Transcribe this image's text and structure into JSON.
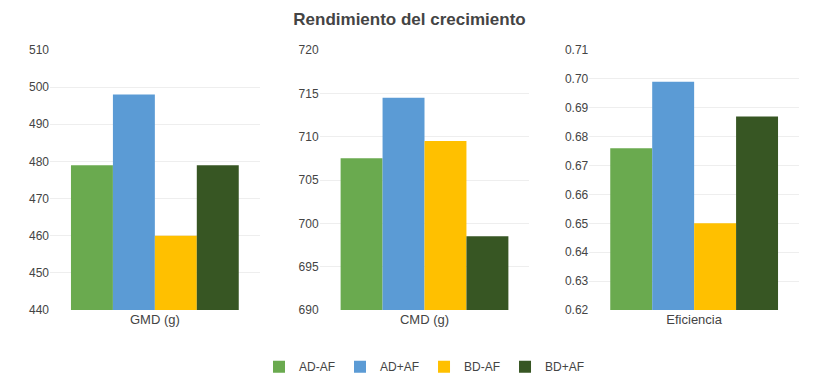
{
  "chart_data": [
    {
      "type": "bar",
      "title": "Rendimiento del crecimiento",
      "categories": [
        "GMD (g)"
      ],
      "series": [
        {
          "name": "AD-AF",
          "color": "#6aaa4f",
          "values": [
            479
          ]
        },
        {
          "name": "AD+AF",
          "color": "#5b9bd5",
          "values": [
            498
          ]
        },
        {
          "name": "BD-AF",
          "color": "#ffc000",
          "values": [
            460
          ]
        },
        {
          "name": "BD+AF",
          "color": "#375623",
          "values": [
            479
          ]
        }
      ],
      "ylim": [
        440,
        510
      ],
      "yticks": [
        440,
        450,
        460,
        470,
        480,
        490,
        500,
        510
      ],
      "grid": true,
      "legend": "bottom"
    },
    {
      "type": "bar",
      "categories": [
        "CMD (g)"
      ],
      "series": [
        {
          "name": "AD-AF",
          "color": "#6aaa4f",
          "values": [
            707.5
          ]
        },
        {
          "name": "AD+AF",
          "color": "#5b9bd5",
          "values": [
            714.5
          ]
        },
        {
          "name": "BD-AF",
          "color": "#ffc000",
          "values": [
            709.5
          ]
        },
        {
          "name": "BD+AF",
          "color": "#375623",
          "values": [
            698.5
          ]
        }
      ],
      "ylim": [
        690,
        720
      ],
      "yticks": [
        690,
        695,
        700,
        705,
        710,
        715,
        720
      ],
      "grid": true
    },
    {
      "type": "bar",
      "categories": [
        "Eficiencia"
      ],
      "series": [
        {
          "name": "AD-AF",
          "color": "#6aaa4f",
          "values": [
            0.676
          ]
        },
        {
          "name": "AD+AF",
          "color": "#5b9bd5",
          "values": [
            0.699
          ]
        },
        {
          "name": "BD-AF",
          "color": "#ffc000",
          "values": [
            0.65
          ]
        },
        {
          "name": "BD+AF",
          "color": "#375623",
          "values": [
            0.687
          ]
        }
      ],
      "ylim": [
        0.62,
        0.71
      ],
      "yticks": [
        0.62,
        0.63,
        0.64,
        0.65,
        0.66,
        0.67,
        0.68,
        0.69,
        {
          "value": 0.7,
          "label": "0.70"
        },
        0.71
      ],
      "grid": true
    }
  ]
}
